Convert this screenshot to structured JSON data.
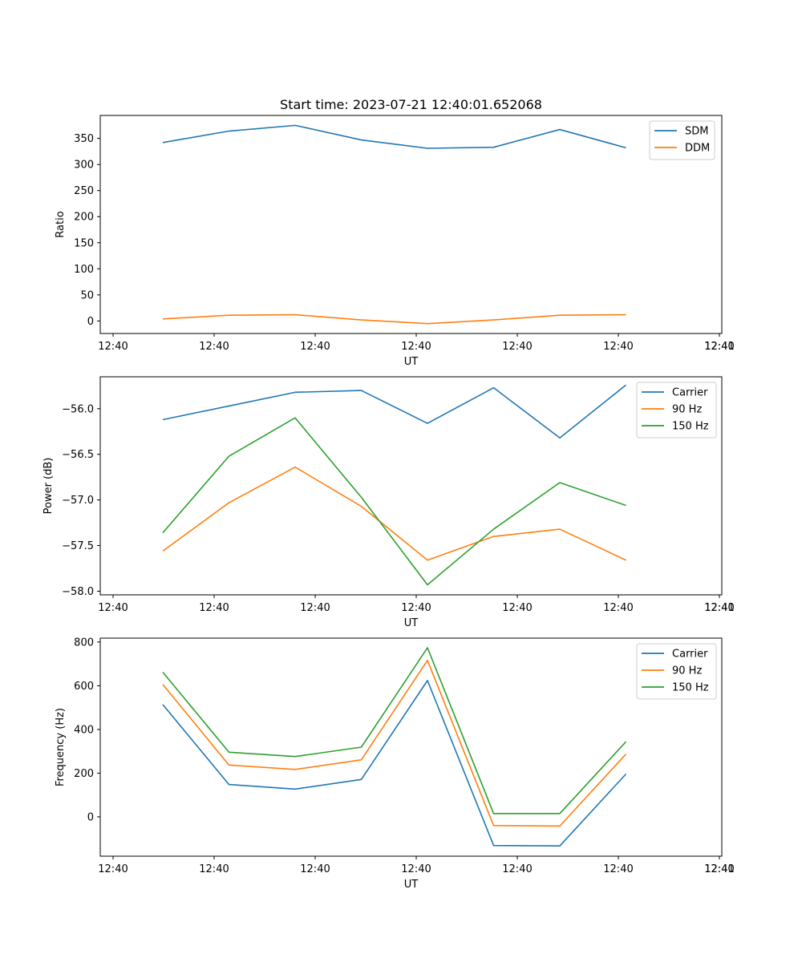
{
  "chart_data": [
    {
      "type": "line",
      "title": "Start time: 2023-07-21 12:40:01.652068",
      "xlabel": "UT",
      "ylabel": "Ratio",
      "x_tick_labels": [
        "12:40",
        "12:40",
        "12:40",
        "12:40",
        "12:40",
        "12:40",
        "12:40",
        "12:41"
      ],
      "y_ticks": [
        0,
        50,
        100,
        150,
        200,
        250,
        300,
        350
      ],
      "ylim": [
        -24,
        394
      ],
      "legend": "top-right",
      "series": [
        {
          "name": "SDM",
          "color": "#1f77b4",
          "values": [
            342,
            364,
            375,
            347,
            331,
            333,
            367,
            332
          ]
        },
        {
          "name": "DDM",
          "color": "#ff7f0e",
          "values": [
            4,
            11,
            12,
            2,
            -5,
            2,
            11,
            12
          ]
        }
      ]
    },
    {
      "type": "line",
      "title": "",
      "xlabel": "UT",
      "ylabel": "Power (dB)",
      "x_tick_labels": [
        "12:40",
        "12:40",
        "12:40",
        "12:40",
        "12:40",
        "12:40",
        "12:40",
        "12:41"
      ],
      "y_ticks": [
        -58.0,
        -57.5,
        -57.0,
        -56.5,
        -56.0
      ],
      "y_tick_labels": [
        "−58.0",
        "−57.5",
        "−57.0",
        "−56.5",
        "−56.0"
      ],
      "ylim": [
        -58.04,
        -55.65
      ],
      "legend": "top-right",
      "series": [
        {
          "name": "Carrier",
          "color": "#1f77b4",
          "values": [
            -56.12,
            -55.97,
            -55.82,
            -55.8,
            -56.16,
            -55.77,
            -56.32,
            -55.74
          ]
        },
        {
          "name": "90 Hz",
          "color": "#ff7f0e",
          "values": [
            -57.56,
            -57.03,
            -56.64,
            -57.07,
            -57.66,
            -57.4,
            -57.32,
            -57.66
          ]
        },
        {
          "name": "150 Hz",
          "color": "#2ca02c",
          "values": [
            -57.36,
            -56.52,
            -56.1,
            -56.97,
            -57.93,
            -57.32,
            -56.81,
            -57.06
          ]
        }
      ]
    },
    {
      "type": "line",
      "title": "",
      "xlabel": "UT",
      "ylabel": "Frequency (Hz)",
      "x_tick_labels": [
        "12:40",
        "12:40",
        "12:40",
        "12:40",
        "12:40",
        "12:40",
        "12:40",
        "12:41"
      ],
      "y_ticks": [
        0,
        200,
        400,
        600,
        800
      ],
      "ylim": [
        -180,
        818
      ],
      "legend": "top-right",
      "series": [
        {
          "name": "Carrier",
          "color": "#1f77b4",
          "values": [
            514,
            148,
            127,
            171,
            624,
            -131,
            -133,
            196
          ]
        },
        {
          "name": "90 Hz",
          "color": "#ff7f0e",
          "values": [
            606,
            237,
            217,
            261,
            716,
            -40,
            -42,
            287
          ]
        },
        {
          "name": "150 Hz",
          "color": "#2ca02c",
          "values": [
            662,
            296,
            276,
            319,
            774,
            15,
            15,
            344
          ]
        }
      ]
    }
  ]
}
